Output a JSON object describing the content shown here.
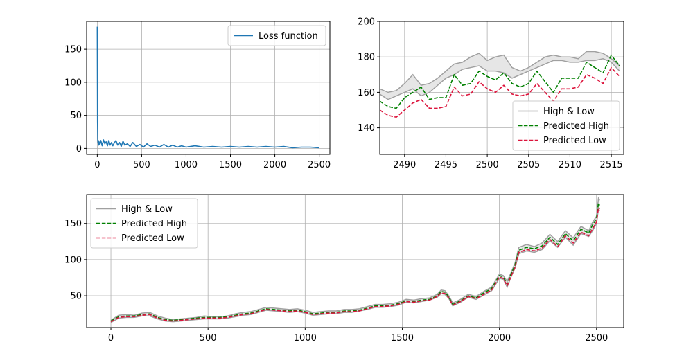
{
  "chart_data": [
    {
      "id": "loss",
      "type": "line",
      "title": "",
      "xlabel": "",
      "ylabel": "",
      "xlim": [
        -120,
        2620
      ],
      "ylim": [
        -9,
        192
      ],
      "xticks": [
        0,
        500,
        1000,
        1500,
        2000,
        2500
      ],
      "yticks": [
        0,
        50,
        100,
        150
      ],
      "grid": true,
      "legend": "top-right",
      "series": [
        {
          "name": "Loss function",
          "color": "#1f77b4",
          "style": "solid",
          "x": [
            0,
            3,
            6,
            9,
            12,
            16,
            20,
            30,
            40,
            55,
            70,
            85,
            100,
            115,
            130,
            145,
            160,
            175,
            190,
            210,
            230,
            250,
            270,
            290,
            310,
            340,
            370,
            400,
            440,
            480,
            520,
            560,
            600,
            650,
            700,
            750,
            800,
            850,
            900,
            950,
            1000,
            1100,
            1200,
            1300,
            1400,
            1500,
            1600,
            1700,
            1800,
            1900,
            2000,
            2100,
            2200,
            2300,
            2400,
            2500
          ],
          "y": [
            184,
            40,
            14,
            8,
            12,
            5,
            10,
            6,
            12,
            4,
            13,
            7,
            10,
            4,
            12,
            5,
            9,
            4,
            8,
            12,
            5,
            9,
            3,
            11,
            5,
            7,
            3,
            9,
            3,
            6,
            2,
            7,
            3,
            5,
            2,
            6,
            2,
            5,
            2,
            4,
            2,
            4,
            2,
            3,
            2,
            3,
            2,
            3,
            2,
            3,
            2,
            3,
            1,
            2,
            2,
            1
          ]
        }
      ]
    },
    {
      "id": "zoom",
      "type": "line",
      "title": "",
      "xlabel": "",
      "ylabel": "",
      "xlim": [
        2487,
        2516.5
      ],
      "ylim": [
        125,
        200
      ],
      "xticks": [
        2490,
        2495,
        2500,
        2505,
        2510,
        2515
      ],
      "yticks": [
        140,
        160,
        180,
        200
      ],
      "grid": true,
      "legend": "bottom-right",
      "x": [
        2487,
        2488,
        2489,
        2490,
        2491,
        2492,
        2493,
        2494,
        2495,
        2496,
        2497,
        2498,
        2499,
        2500,
        2501,
        2502,
        2503,
        2504,
        2505,
        2506,
        2507,
        2508,
        2509,
        2510,
        2511,
        2512,
        2513,
        2514,
        2515,
        2516
      ],
      "series": [
        {
          "name": "High & Low",
          "color": "#a0a0a0",
          "style": "band",
          "high": [
            162,
            160,
            161,
            165,
            170,
            164,
            165,
            168,
            172,
            176,
            177,
            180,
            182,
            178,
            180,
            181,
            174,
            172,
            174,
            177,
            180,
            181,
            180,
            180,
            179,
            183,
            183,
            182,
            179,
            175
          ],
          "low": [
            159,
            156,
            158,
            160,
            162,
            158,
            160,
            164,
            168,
            170,
            173,
            174,
            175,
            172,
            172,
            171,
            168,
            170,
            172,
            174,
            176,
            178,
            178,
            177,
            177,
            178,
            178,
            179,
            177,
            172
          ]
        },
        {
          "name": "Predicted High",
          "color": "#008000",
          "style": "dashed",
          "values": [
            155,
            152,
            151,
            157,
            160,
            163,
            156,
            157,
            157,
            170,
            164,
            165,
            172,
            169,
            167,
            171,
            165,
            163,
            165,
            172,
            166,
            160,
            168,
            168,
            168,
            177,
            174,
            171,
            181,
            175
          ]
        },
        {
          "name": "Predicted Low",
          "color": "#dc143c",
          "style": "dashed",
          "values": [
            150,
            147,
            146,
            150,
            154,
            156,
            151,
            151,
            152,
            163,
            158,
            159,
            166,
            162,
            160,
            164,
            159,
            158,
            159,
            165,
            160,
            155,
            162,
            162,
            163,
            170,
            168,
            165,
            174,
            169
          ]
        }
      ]
    },
    {
      "id": "full",
      "type": "line",
      "title": "",
      "xlabel": "",
      "ylabel": "",
      "xlim": [
        -125,
        2640
      ],
      "ylim": [
        6,
        190
      ],
      "xticks": [
        0,
        500,
        1000,
        1500,
        2000,
        2500
      ],
      "yticks": [
        50,
        100,
        150
      ],
      "grid": true,
      "legend": "top-left",
      "x": [
        0,
        40,
        80,
        120,
        160,
        200,
        240,
        280,
        320,
        360,
        400,
        440,
        480,
        520,
        560,
        600,
        640,
        680,
        720,
        760,
        800,
        840,
        880,
        920,
        960,
        1000,
        1040,
        1080,
        1120,
        1160,
        1200,
        1240,
        1280,
        1320,
        1360,
        1400,
        1440,
        1480,
        1520,
        1560,
        1600,
        1640,
        1680,
        1700,
        1720,
        1740,
        1760,
        1800,
        1840,
        1880,
        1920,
        1960,
        2000,
        2020,
        2040,
        2060,
        2080,
        2100,
        2140,
        2180,
        2220,
        2260,
        2300,
        2340,
        2380,
        2420,
        2460,
        2480,
        2500,
        2510,
        2516
      ],
      "series": [
        {
          "name": "High & Low",
          "color": "#a0a0a0",
          "style": "band",
          "high": [
            16,
            23,
            24,
            23,
            26,
            27,
            22,
            19,
            17,
            18,
            19,
            20,
            22,
            21,
            21,
            22,
            25,
            27,
            28,
            31,
            34,
            33,
            32,
            31,
            32,
            30,
            27,
            28,
            29,
            29,
            31,
            31,
            32,
            35,
            38,
            38,
            39,
            41,
            45,
            44,
            46,
            47,
            52,
            58,
            57,
            50,
            40,
            45,
            52,
            49,
            56,
            62,
            80,
            78,
            70,
            82,
            95,
            117,
            121,
            118,
            123,
            135,
            125,
            140,
            130,
            146,
            140,
            152,
            160,
            185,
            182
          ],
          "low": [
            13,
            19,
            20,
            20,
            22,
            22,
            18,
            15,
            14,
            15,
            16,
            17,
            18,
            18,
            18,
            19,
            21,
            23,
            24,
            27,
            30,
            29,
            28,
            27,
            28,
            26,
            23,
            24,
            25,
            25,
            27,
            27,
            29,
            31,
            34,
            34,
            35,
            37,
            41,
            40,
            42,
            44,
            48,
            53,
            52,
            46,
            36,
            41,
            48,
            45,
            51,
            57,
            74,
            73,
            62,
            76,
            88,
            108,
            112,
            110,
            114,
            126,
            117,
            131,
            120,
            136,
            132,
            140,
            150,
            170,
            168
          ]
        },
        {
          "name": "Predicted High",
          "color": "#008000",
          "style": "dashed",
          "values": [
            15,
            21,
            22,
            22,
            24,
            25,
            20,
            17,
            16,
            17,
            18,
            19,
            20,
            20,
            20,
            21,
            23,
            25,
            26,
            29,
            32,
            31,
            30,
            29,
            30,
            28,
            25,
            26,
            27,
            27,
            29,
            29,
            30,
            33,
            36,
            36,
            37,
            39,
            43,
            42,
            44,
            45,
            50,
            56,
            55,
            48,
            38,
            43,
            50,
            47,
            54,
            60,
            78,
            76,
            66,
            80,
            92,
            113,
            117,
            115,
            119,
            131,
            121,
            136,
            126,
            142,
            137,
            148,
            157,
            178,
            175
          ]
        },
        {
          "name": "Predicted Low",
          "color": "#dc143c",
          "style": "dashed",
          "values": [
            14,
            20,
            21,
            21,
            23,
            24,
            19,
            16,
            15,
            16,
            17,
            18,
            19,
            19,
            19,
            20,
            22,
            24,
            25,
            28,
            31,
            30,
            29,
            28,
            29,
            27,
            24,
            25,
            26,
            26,
            28,
            28,
            29,
            32,
            35,
            35,
            36,
            38,
            42,
            41,
            43,
            44,
            49,
            54,
            53,
            47,
            37,
            42,
            49,
            46,
            52,
            58,
            76,
            74,
            64,
            77,
            89,
            110,
            114,
            112,
            116,
            128,
            118,
            133,
            123,
            138,
            133,
            143,
            152,
            172,
            170
          ]
        }
      ]
    }
  ]
}
